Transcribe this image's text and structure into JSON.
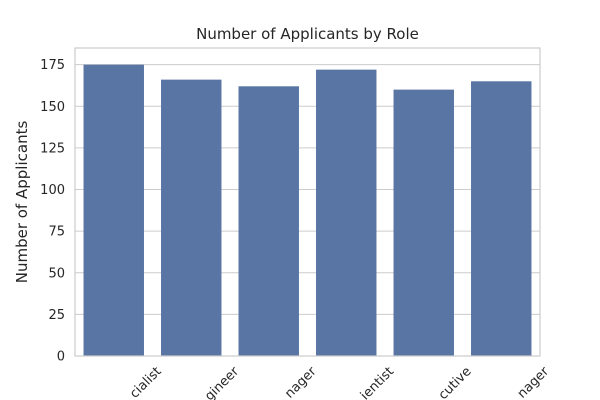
{
  "chart_data": {
    "type": "bar",
    "title": "Number of Applicants by Role",
    "xlabel": "",
    "ylabel": "Number of Applicants",
    "categories": [
      "Specialist",
      "Engineer",
      "Manager",
      "Scientist",
      "Executive",
      "Manager"
    ],
    "category_labels_visible": [
      "cialist",
      "gineer",
      "nager",
      "ientist",
      "cutive",
      "nager"
    ],
    "values": [
      175,
      166,
      162,
      172,
      160,
      165
    ],
    "ylim": [
      0,
      185
    ],
    "yticks": [
      0,
      25,
      50,
      75,
      100,
      125,
      150,
      175
    ],
    "grid": true,
    "bar_color": "#5975a4",
    "legend": "none"
  }
}
